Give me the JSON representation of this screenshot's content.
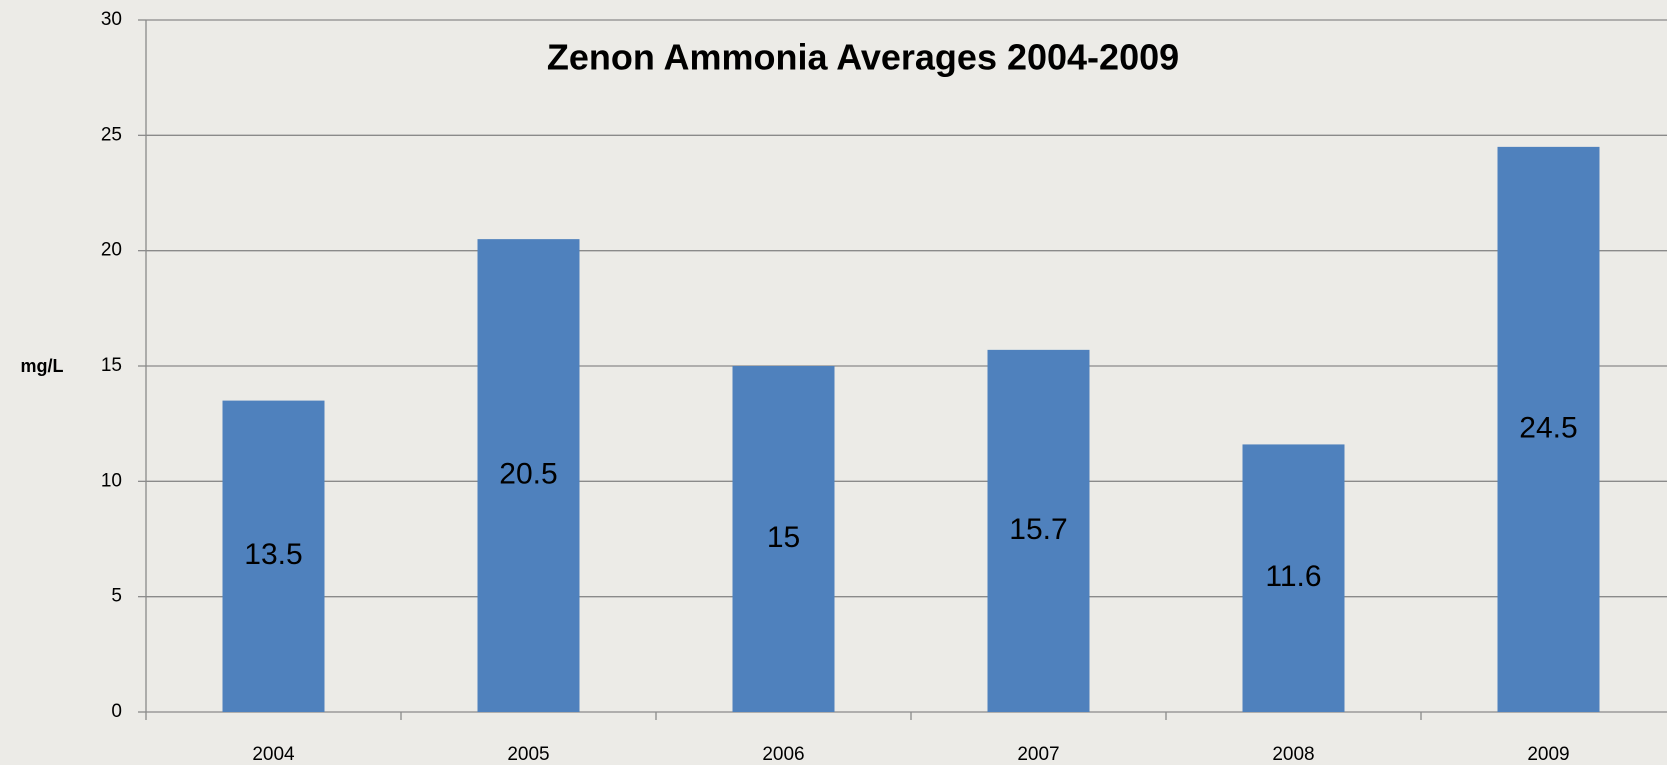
{
  "chart_data": {
    "type": "bar",
    "title": "Zenon Ammonia Averages 2004-2009",
    "y_label": "mg/L",
    "categories": [
      "2004",
      "2005",
      "2006",
      "2007",
      "2008",
      "2009"
    ],
    "values": [
      13.5,
      20.5,
      15,
      15.7,
      11.6,
      24.5
    ],
    "color": "#4f81bd",
    "ylim": [
      0,
      30
    ],
    "yticks": [
      0,
      5,
      10,
      15,
      20,
      25,
      30
    ],
    "grid": true
  }
}
